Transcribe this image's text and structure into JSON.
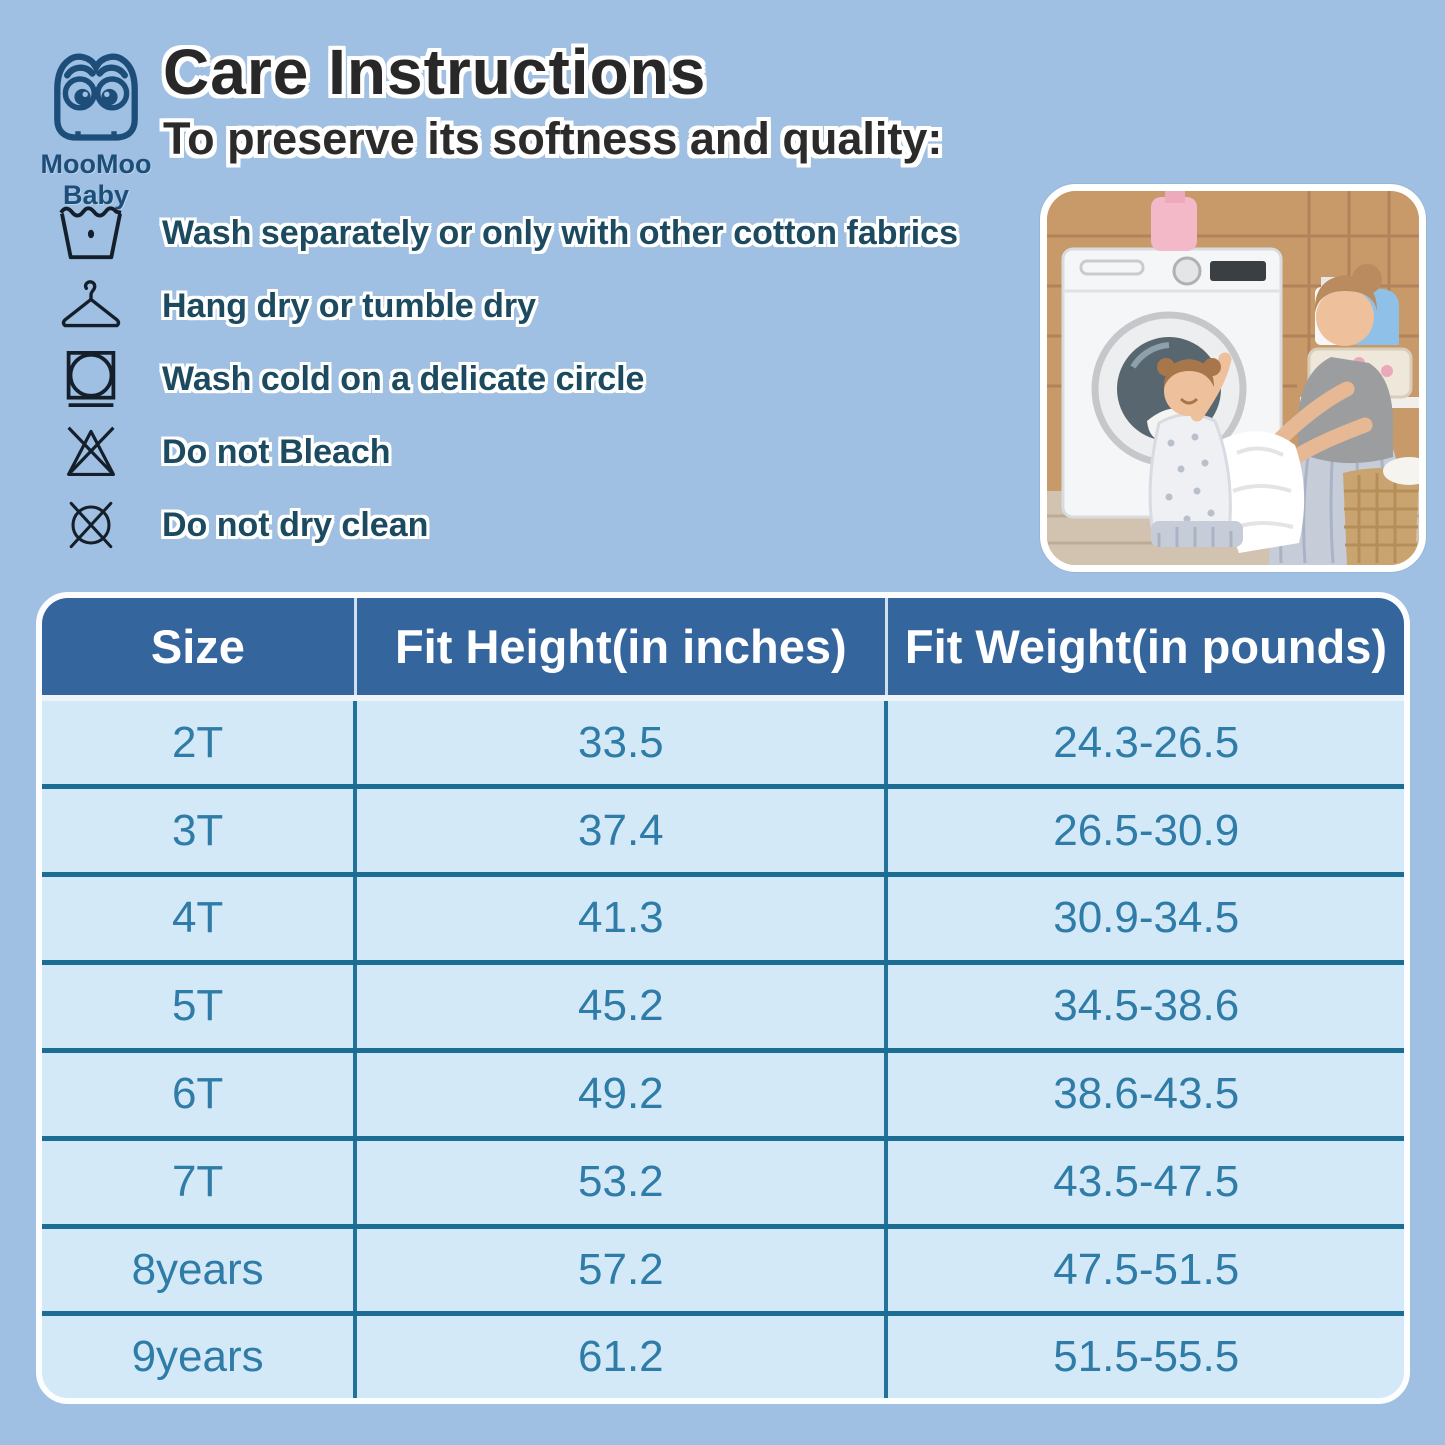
{
  "brand": {
    "name": "MooMoo Baby"
  },
  "header": {
    "title": "Care Instructions",
    "subtitle": "To preserve its softness and quality:"
  },
  "care_list": [
    {
      "icon": "wash-tub-icon",
      "label": "Wash separately or only with other cotton fabrics"
    },
    {
      "icon": "hanger-icon",
      "label": "Hang dry or tumble dry"
    },
    {
      "icon": "tumble-dry-gentle-icon",
      "label": "Wash cold on a delicate circle"
    },
    {
      "icon": "do-not-bleach-icon",
      "label": "Do not Bleach"
    },
    {
      "icon": "do-not-dry-clean-icon",
      "label": "Do not dry clean"
    }
  ],
  "size_table": {
    "columns": [
      "Size",
      "Fit Height(in inches)",
      "Fit Weight(in pounds)"
    ],
    "rows": [
      [
        "2T",
        "33.5",
        "24.3-26.5"
      ],
      [
        "3T",
        "37.4",
        "26.5-30.9"
      ],
      [
        "4T",
        "41.3",
        "30.9-34.5"
      ],
      [
        "5T",
        "45.2",
        "34.5-38.6"
      ],
      [
        "6T",
        "49.2",
        "38.6-43.5"
      ],
      [
        "7T",
        "53.2",
        "43.5-47.5"
      ],
      [
        "8years",
        "57.2",
        "47.5-51.5"
      ],
      [
        "9years",
        "61.2",
        "51.5-55.5"
      ]
    ]
  },
  "colors": {
    "page_background": "#9fc0e2",
    "table_header_background": "#35659d",
    "table_row_background": "#d4e9f7",
    "table_border_teal": "#1c6d93",
    "table_text": "#2e7ca7",
    "heading_text": "#282828",
    "care_text": "#1c4a60",
    "logo_blue": "#1d4e79"
  }
}
